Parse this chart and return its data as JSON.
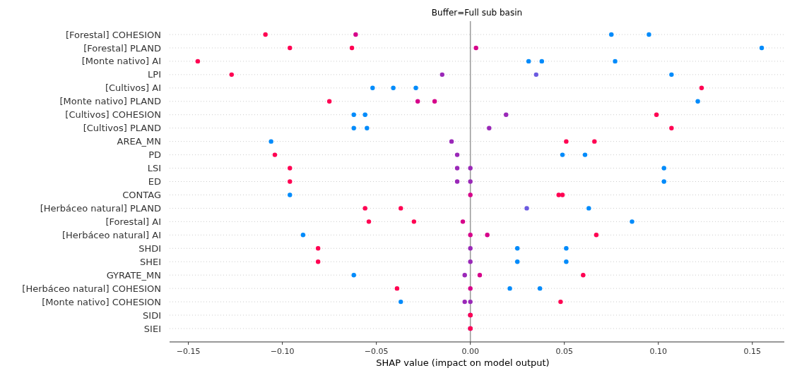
{
  "chart_data": {
    "type": "scatter",
    "orientation": "horizontal",
    "title": "Buffer=Full sub basin",
    "xlabel": "SHAP value (impact on model output)",
    "categories": [
      "[Forestal] COHESION",
      "[Forestal] PLAND",
      "[Monte nativo] AI",
      "LPI",
      "[Cultivos] AI",
      "[Monte nativo] PLAND",
      "[Cultivos] COHESION",
      "[Cultivos] PLAND",
      "AREA_MN",
      "PD",
      "LSI",
      "ED",
      "CONTAG",
      "[Herbáceo natural] PLAND",
      "[Forestal] AI",
      "[Herbáceo natural] AI",
      "SHDI",
      "SHEI",
      "GYRATE_MN",
      "[Herbáceo natural] COHESION",
      "[Monte nativo] COHESION",
      "SIDI",
      "SIEI"
    ],
    "series": [
      {
        "values": [
          -0.109,
          -0.096,
          -0.145,
          -0.127,
          -0.052,
          -0.075,
          -0.062,
          -0.062,
          -0.106,
          -0.104,
          -0.096,
          -0.096,
          -0.096,
          -0.056,
          -0.054,
          -0.089,
          -0.081,
          -0.081,
          -0.062,
          -0.039,
          -0.037,
          0.0,
          0.0
        ],
        "colors": [
          "#ff0052",
          "#ff0052",
          "#ff0052",
          "#ff0052",
          "#008bfb",
          "#ff0052",
          "#008bfb",
          "#008bfb",
          "#008bfb",
          "#ff0052",
          "#ff0052",
          "#ff0052",
          "#008bfb",
          "#ff0052",
          "#ff0052",
          "#008bfb",
          "#ff0052",
          "#ff0052",
          "#008bfb",
          "#ff0052",
          "#008bfb",
          "#6b5ae0",
          "#6b5ae0"
        ]
      },
      {
        "values": [
          -0.061,
          -0.063,
          0.031,
          -0.015,
          -0.041,
          -0.028,
          -0.056,
          -0.055,
          -0.01,
          -0.007,
          -0.007,
          -0.007,
          0.0,
          -0.037,
          -0.03,
          0.0,
          0.0,
          0.0,
          -0.003,
          0.0,
          -0.003,
          0.0,
          0.0
        ],
        "colors": [
          "#d6008a",
          "#ff0052",
          "#008bfb",
          "#9a28b8",
          "#008bfb",
          "#d6008a",
          "#008bfb",
          "#008bfb",
          "#9a28b8",
          "#9a28b8",
          "#9a28b8",
          "#9a28b8",
          "#d6008a",
          "#ff0052",
          "#ff0052",
          "#d6008a",
          "#9a28b8",
          "#9a28b8",
          "#9a28b8",
          "#d6008a",
          "#9a28b8",
          "#d6008a",
          "#d6008a"
        ]
      },
      {
        "values": [
          0.075,
          0.003,
          0.038,
          0.035,
          -0.029,
          -0.019,
          0.019,
          0.01,
          0.051,
          0.049,
          0.0,
          0.0,
          0.047,
          0.03,
          -0.004,
          0.009,
          0.025,
          0.025,
          0.005,
          0.021,
          0.0,
          0.0,
          0.0
        ],
        "colors": [
          "#008bfb",
          "#d6008a",
          "#008bfb",
          "#6b5ae0",
          "#008bfb",
          "#d6008a",
          "#9a28b8",
          "#9a28b8",
          "#ff0052",
          "#008bfb",
          "#9a28b8",
          "#9a28b8",
          "#ff0052",
          "#6b5ae0",
          "#d6008a",
          "#d6008a",
          "#008bfb",
          "#008bfb",
          "#d6008a",
          "#008bfb",
          "#9a28b8",
          "#ff0052",
          "#ff0052"
        ]
      },
      {
        "values": [
          0.095,
          0.155,
          0.077,
          0.107,
          0.123,
          0.121,
          0.099,
          0.107,
          0.066,
          0.061,
          0.103,
          0.103,
          0.049,
          0.063,
          0.086,
          0.067,
          0.051,
          0.051,
          0.06,
          0.037,
          0.048,
          null,
          null
        ],
        "colors": [
          "#008bfb",
          "#008bfb",
          "#008bfb",
          "#008bfb",
          "#ff0052",
          "#008bfb",
          "#ff0052",
          "#ff0052",
          "#ff0052",
          "#008bfb",
          "#008bfb",
          "#008bfb",
          "#ff0052",
          "#008bfb",
          "#008bfb",
          "#ff0052",
          "#008bfb",
          "#008bfb",
          "#ff0052",
          "#008bfb",
          "#ff0052",
          null,
          null
        ]
      }
    ],
    "xlim": [
      -0.16,
      0.167
    ],
    "xticks": [
      {
        "value": -0.15,
        "label": "−0.15"
      },
      {
        "value": -0.1,
        "label": "−0.10"
      },
      {
        "value": -0.05,
        "label": "−0.05"
      },
      {
        "value": 0,
        "label": "0.00"
      },
      {
        "value": 0.05,
        "label": "0.05"
      },
      {
        "value": 0.1,
        "label": "0.10"
      },
      {
        "value": 0.15,
        "label": "0.15"
      }
    ],
    "grid": "y",
    "marker": "circle",
    "ref_lines": [
      {
        "axis": "x",
        "value": 0,
        "color": "#999999"
      }
    ]
  }
}
